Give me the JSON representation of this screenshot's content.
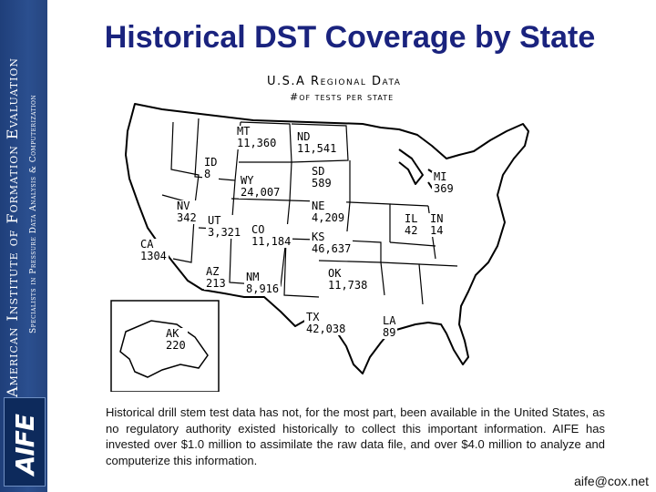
{
  "sidebar": {
    "organization": "American Institute of Formation Evaluation",
    "tagline": "Specialists in Pressure Data Analysis & Computerization",
    "logo_text": "AIFE"
  },
  "slide": {
    "title": "Historical DST Coverage by State"
  },
  "map": {
    "heading": "U.S.A Regional Data",
    "subheading": "#of tests per state",
    "states": {
      "MT": {
        "label": "MT",
        "value": "11,360"
      },
      "ND": {
        "label": "ND",
        "value": "11,541"
      },
      "ID": {
        "label": "ID",
        "value": "8"
      },
      "WY": {
        "label": "WY",
        "value": "24,007"
      },
      "SD": {
        "label": "SD",
        "value": "589"
      },
      "MI": {
        "label": "MI",
        "value": "369"
      },
      "NV": {
        "label": "NV",
        "value": "342"
      },
      "UT": {
        "label": "UT",
        "value": "3,321"
      },
      "CO": {
        "label": "CO",
        "value": "11,184"
      },
      "NE": {
        "label": "NE",
        "value": "4,209"
      },
      "KS": {
        "label": "KS",
        "value": "46,637"
      },
      "IL": {
        "label": "IL",
        "value": "42"
      },
      "IN": {
        "label": "IN",
        "value": "14"
      },
      "CA": {
        "label": "CA",
        "value": "1304"
      },
      "AZ": {
        "label": "AZ",
        "value": "213"
      },
      "NM": {
        "label": "NM",
        "value": "8,916"
      },
      "OK": {
        "label": "OK",
        "value": "11,738"
      },
      "TX": {
        "label": "TX",
        "value": "42,038"
      },
      "LA": {
        "label": "LA",
        "value": "89"
      },
      "AK": {
        "label": "AK",
        "value": "220"
      }
    }
  },
  "description": "Historical drill stem test data has not, for the most part, been available in the United States, as no regulatory authority existed historically to collect this important information. AIFE has invested over $1.0 million to assimilate the raw data file, and over $4.0 million to analyze and computerize this information.",
  "contact": "aife@cox.net"
}
